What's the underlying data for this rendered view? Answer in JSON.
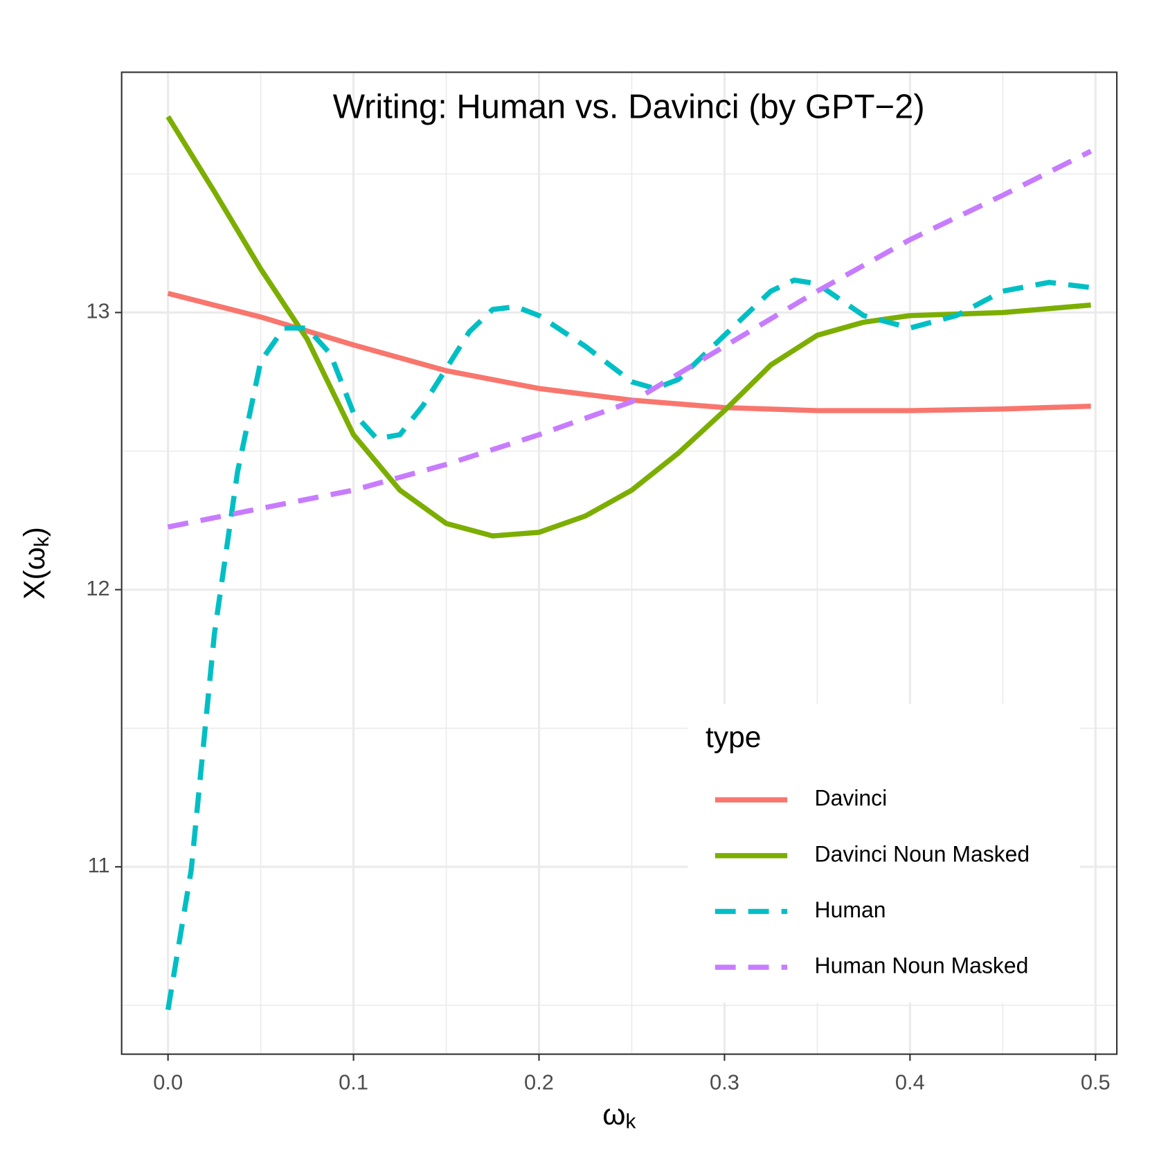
{
  "chart_data": {
    "type": "line",
    "title": "Writing: Human vs. Davinci (by GPT−2)",
    "xlabel": [
      "ω",
      "k"
    ],
    "ylabel": [
      "X(ω",
      "k",
      ")"
    ],
    "xlim": [
      -0.025,
      0.5115
    ],
    "ylim": [
      10.324,
      13.867
    ],
    "xticks": [
      {
        "value": 0,
        "label": "0.0"
      },
      0.1,
      0.2,
      0.3,
      0.4,
      0.5
    ],
    "yticks": [
      11,
      12,
      13
    ],
    "grid": true,
    "legend_title": "type",
    "legend_position": "inside bottom right",
    "series": [
      {
        "name": "Davinci",
        "color": "#F8766D",
        "dash": false,
        "x": [
          0,
          0.05,
          0.1,
          0.15,
          0.2,
          0.25,
          0.3,
          0.35,
          0.4,
          0.45,
          0.4975
        ],
        "values": [
          13.069,
          12.984,
          12.883,
          12.79,
          12.726,
          12.684,
          12.657,
          12.646,
          12.646,
          12.652,
          12.662
        ]
      },
      {
        "name": "Davinci Noun Masked",
        "color": "#7CAE00",
        "dash": false,
        "x": [
          0,
          0.025,
          0.05,
          0.075,
          0.1,
          0.125,
          0.15,
          0.175,
          0.2,
          0.225,
          0.25,
          0.275,
          0.3,
          0.325,
          0.35,
          0.375,
          0.4,
          0.45,
          0.4975
        ],
        "values": [
          13.707,
          13.436,
          13.157,
          12.904,
          12.559,
          12.359,
          12.239,
          12.194,
          12.207,
          12.266,
          12.359,
          12.492,
          12.646,
          12.811,
          12.918,
          12.965,
          12.989,
          13.0,
          13.027
        ]
      },
      {
        "name": "Human",
        "color": "#00BFC4",
        "dash": true,
        "x": [
          0,
          0.0125,
          0.025,
          0.0375,
          0.05,
          0.0625,
          0.075,
          0.0875,
          0.1,
          0.1125,
          0.125,
          0.1375,
          0.15,
          0.1625,
          0.175,
          0.1875,
          0.2,
          0.225,
          0.25,
          0.2625,
          0.275,
          0.3,
          0.325,
          0.3375,
          0.35,
          0.375,
          0.4,
          0.425,
          0.45,
          0.475,
          0.4975
        ],
        "values": [
          10.484,
          10.989,
          11.84,
          12.426,
          12.824,
          12.944,
          12.944,
          12.851,
          12.638,
          12.545,
          12.559,
          12.665,
          12.798,
          12.931,
          13.011,
          13.021,
          12.989,
          12.878,
          12.75,
          12.726,
          12.758,
          12.918,
          13.077,
          13.117,
          13.104,
          12.989,
          12.944,
          12.989,
          13.077,
          13.109,
          13.09
        ]
      },
      {
        "name": "Human Noun Masked",
        "color": "#C77CFF",
        "dash": true,
        "x": [
          0,
          0.05,
          0.1,
          0.15,
          0.2,
          0.25,
          0.3,
          0.35,
          0.4,
          0.45,
          0.4975
        ],
        "values": [
          12.226,
          12.293,
          12.359,
          12.452,
          12.559,
          12.678,
          12.878,
          13.077,
          13.263,
          13.423,
          13.582
        ]
      }
    ]
  }
}
